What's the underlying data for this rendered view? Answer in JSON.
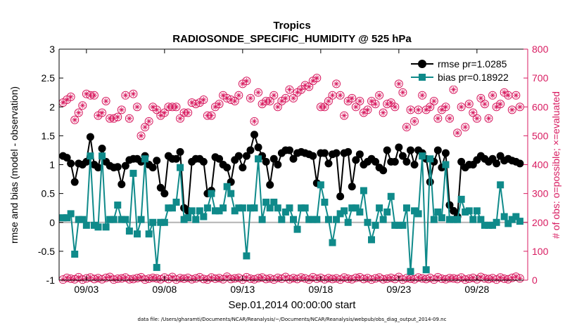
{
  "chart_data": {
    "type": "line",
    "title": "Tropics",
    "subtitle": "RADIOSONDE_SPECIFIC_HUMIDITY @ 525 hPa",
    "xlabel": "Sep.01,2014 00:00:00 start",
    "ylabel_left": "rmse and bias (model - observation)",
    "ylabel_right": "# of obs: o=possible; ×=evaluated",
    "footer": "data file: /Users/gharamti/Documents/NCAR/Reanalysis/~/Documents/NCAR/Reanalysis/webpub/obs_diag_output_2014-09.nc",
    "x_tick_labels": [
      "09/03",
      "09/08",
      "09/13",
      "09/18",
      "09/23",
      "09/28"
    ],
    "x_tick_days": [
      3,
      8,
      13,
      18,
      23,
      28
    ],
    "xlim_days": [
      1.25,
      31.25
    ],
    "ylim_left": [
      -1,
      3
    ],
    "y_ticks_left": [
      "-1",
      "-0.5",
      "0",
      "0.5",
      "1",
      "1.5",
      "2",
      "2.5",
      "3"
    ],
    "ylim_right": [
      0,
      800
    ],
    "y_ticks_right": [
      "0",
      "100",
      "200",
      "300",
      "400",
      "500",
      "600",
      "700",
      "800"
    ],
    "colors": {
      "rmse": "#000000",
      "bias": "#0f8a8a",
      "obs": "#d81b60",
      "zero_line": "#b4b4b4"
    },
    "legend": {
      "location": "top-right",
      "entries": [
        "rmse pr=1.0285",
        "bias pr=0.18922"
      ]
    },
    "time_start_day": 1.5,
    "time_step_day": 0.25,
    "series": [
      {
        "name": "rmse pr=1.0285",
        "values": [
          1.15,
          1.12,
          1.02,
          0.7,
          1.02,
          1.0,
          1.05,
          1.48,
          1.0,
          0.95,
          1.28,
          1.05,
          0.98,
          0.95,
          0.96,
          0.66,
          0.98,
          1.08,
          1.1,
          1.1,
          1.05,
          1.15,
          1.0,
          0.95,
          1.07,
          0.6,
          0.5,
          1.15,
          1.1,
          1.1,
          1.22,
          0.25,
          0.2,
          1.05,
          1.1,
          1.1,
          1.05,
          0.5,
          0.55,
          1.13,
          1.1,
          1.0,
          0.95,
          0.7,
          1.08,
          1.15,
          0.95,
          1.15,
          1.25,
          1.52,
          1.3,
          1.15,
          1.05,
          0.65,
          1.1,
          1.0,
          1.2,
          1.25,
          1.25,
          1.1,
          1.2,
          1.22,
          1.2,
          1.18,
          1.15,
          0.68,
          1.2,
          1.2,
          1.02,
          1.18,
          1.2,
          0.45,
          1.2,
          1.22,
          0.62,
          1.08,
          1.18,
          1.0,
          1.05,
          1.1,
          1.05,
          0.95,
          0.9,
          1.25,
          1.05,
          1.05,
          1.3,
          1.15,
          1.05,
          1.25,
          1.0,
          1.25,
          1.2,
          1.1,
          0.7,
          1.05,
          1.25,
          0.95,
          1.2,
          0.3,
          0.2,
          0.1,
          1.05,
          0.95,
          1.0,
          1.0,
          1.08,
          1.15,
          1.1,
          1.05,
          1.1,
          1.02,
          1.15,
          1.07,
          1.1,
          1.07,
          1.05,
          1.02
        ]
      },
      {
        "name": "bias pr=0.18922",
        "values": [
          0.08,
          0.08,
          0.15,
          -0.55,
          0.05,
          0.05,
          -0.05,
          1.15,
          -0.05,
          -0.08,
          1.15,
          -0.08,
          0.05,
          0.05,
          0.3,
          0.05,
          0.05,
          -0.15,
          0.85,
          -0.2,
          0.05,
          1.1,
          -0.2,
          0.0,
          -0.78,
          0.0,
          0.0,
          0.25,
          0.25,
          0.35,
          0.95,
          0.05,
          0.08,
          0.2,
          0.05,
          0.2,
          0.1,
          0.25,
          0.5,
          0.2,
          0.2,
          0.25,
          0.62,
          0.5,
          0.2,
          0.25,
          0.25,
          -0.58,
          0.25,
          0.25,
          1.1,
          0.05,
          0.35,
          0.25,
          0.35,
          0.25,
          0.05,
          0.18,
          0.25,
          0.05,
          -0.12,
          0.25,
          0.25,
          0.05,
          0.05,
          0.05,
          0.65,
          0.35,
          0.05,
          -0.35,
          0.05,
          0.15,
          0.2,
          0.0,
          0.25,
          0.25,
          0.18,
          0.55,
          0.0,
          -0.3,
          -0.05,
          0.25,
          0.05,
          0.18,
          0.45,
          -0.05,
          -0.05,
          -0.05,
          0.25,
          -0.85,
          0.2,
          0.15,
          1.15,
          -0.82,
          1.1,
          0.05,
          0.18,
          0.08,
          1.0,
          0.05,
          0.05,
          0.05,
          0.4,
          0.18,
          0.2,
          0.05,
          0.2,
          0.05,
          -0.05,
          -0.05,
          -0.05,
          0.0,
          0.65,
          0.1,
          -0.02,
          0.05,
          0.1,
          0.02
        ]
      },
      {
        "name": "# of obs possible",
        "values": [
          615,
          625,
          635,
          555,
          580,
          605,
          645,
          640,
          640,
          570,
          580,
          620,
          560,
          560,
          565,
          590,
          640,
          560,
          645,
          600,
          500,
          530,
          550,
          600,
          590,
          570,
          580,
          600,
          600,
          600,
          560,
          580,
          580,
          615,
          610,
          615,
          625,
          570,
          570,
          600,
          610,
          640,
          630,
          625,
          620,
          640,
          680,
          690,
          630,
          550,
          650,
          610,
          620,
          620,
          640,
          600,
          620,
          630,
          660,
          630,
          650,
          660,
          675,
          670,
          690,
          700,
          600,
          600,
          620,
          640,
          680,
          640,
          570,
          620,
          630,
          600,
          620,
          580,
          590,
          620,
          610,
          640,
          580,
          610,
          615,
          600,
          680,
          650,
          530,
          590,
          550,
          590,
          640,
          590,
          600,
          620,
          560,
          590,
          600,
          560,
          660,
          510,
          600,
          530,
          610,
          580,
          560,
          630,
          610,
          560,
          640,
          600,
          610,
          650,
          640,
          590,
          640,
          600
        ]
      },
      {
        "name": "# of obs evaluated",
        "values": [
          615,
          625,
          635,
          555,
          580,
          605,
          645,
          640,
          640,
          570,
          580,
          620,
          560,
          560,
          565,
          590,
          640,
          560,
          645,
          600,
          500,
          530,
          550,
          600,
          590,
          570,
          580,
          600,
          600,
          600,
          560,
          580,
          580,
          615,
          610,
          615,
          625,
          570,
          570,
          600,
          610,
          640,
          630,
          625,
          620,
          640,
          680,
          690,
          630,
          550,
          650,
          610,
          620,
          620,
          640,
          600,
          620,
          630,
          660,
          630,
          650,
          660,
          675,
          670,
          690,
          700,
          600,
          600,
          620,
          640,
          680,
          640,
          570,
          620,
          630,
          600,
          620,
          580,
          590,
          620,
          610,
          640,
          580,
          610,
          615,
          600,
          680,
          650,
          530,
          590,
          550,
          590,
          640,
          590,
          600,
          620,
          560,
          590,
          600,
          560,
          660,
          510,
          600,
          530,
          610,
          580,
          560,
          630,
          610,
          560,
          640,
          600,
          610,
          650,
          640,
          590,
          640,
          600
        ]
      },
      {
        "name": "# of obs possible (near zero)",
        "values": [
          2,
          8,
          5,
          3,
          10,
          2,
          6,
          9,
          4,
          7,
          3,
          8,
          11,
          2,
          5,
          6,
          9,
          3,
          4,
          7,
          10,
          2,
          5,
          8,
          6,
          3,
          9,
          4,
          11,
          2,
          7,
          5,
          8,
          3,
          6,
          10,
          4,
          2,
          9,
          5,
          7,
          3,
          12,
          4,
          6,
          8,
          2,
          10,
          5,
          3,
          7,
          9,
          4,
          6,
          2,
          8,
          5,
          11,
          3,
          7,
          4,
          9,
          6,
          2,
          10,
          5,
          8,
          3,
          7,
          4,
          6,
          2,
          9,
          5,
          3,
          8,
          10,
          4,
          7,
          2,
          6,
          9,
          3,
          5,
          8,
          4,
          11,
          2,
          7,
          5,
          3,
          9,
          6,
          4,
          8,
          2,
          10,
          5,
          3,
          7,
          6,
          4,
          9,
          2,
          5,
          8,
          3,
          11,
          6,
          4,
          7,
          2,
          9,
          5,
          3,
          8,
          12,
          6
        ]
      },
      {
        "name": "# of obs evaluated (near zero)",
        "values": [
          2,
          8,
          5,
          3,
          10,
          2,
          6,
          9,
          4,
          7,
          3,
          8,
          11,
          2,
          5,
          6,
          9,
          3,
          4,
          7,
          10,
          2,
          5,
          8,
          6,
          3,
          9,
          4,
          11,
          2,
          7,
          5,
          8,
          3,
          6,
          10,
          4,
          2,
          9,
          5,
          7,
          3,
          12,
          4,
          6,
          8,
          2,
          10,
          5,
          3,
          7,
          9,
          4,
          6,
          2,
          8,
          5,
          11,
          3,
          7,
          4,
          9,
          6,
          2,
          10,
          5,
          8,
          3,
          7,
          4,
          6,
          2,
          9,
          5,
          3,
          8,
          10,
          4,
          7,
          2,
          6,
          9,
          3,
          5,
          8,
          4,
          11,
          2,
          7,
          5,
          3,
          9,
          6,
          4,
          8,
          2,
          10,
          5,
          3,
          7,
          6,
          4,
          9,
          2,
          5,
          8,
          3,
          11,
          6,
          4,
          7,
          2,
          9,
          5,
          3,
          8,
          12,
          6
        ]
      }
    ]
  }
}
